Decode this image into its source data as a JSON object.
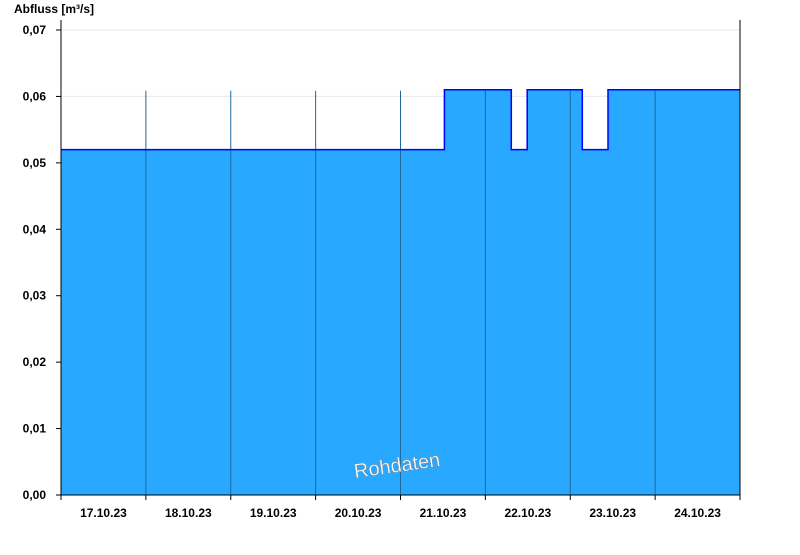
{
  "chart_data": {
    "type": "area",
    "ylabel": "Abfluss [m³/s]",
    "ylim": [
      0,
      0.07
    ],
    "yticks": [
      "0,00",
      "0,01",
      "0,02",
      "0,03",
      "0,04",
      "0,05",
      "0,06",
      "0,07"
    ],
    "xlim": [
      "17.10.23 00:00",
      "25.10.23 00:00"
    ],
    "xticks": [
      "17.10.23",
      "18.10.23",
      "19.10.23",
      "20.10.23",
      "21.10.23",
      "22.10.23",
      "23.10.23",
      "24.10.23"
    ],
    "grid": true,
    "watermark": "Rohdaten",
    "fill_color": "#29a8ff",
    "line_color": "#0000ff",
    "series": [
      {
        "points": [
          [
            "17.10.23 00:00",
            0.052
          ],
          [
            "21.10.23 12:25",
            0.052
          ],
          [
            "21.10.23 12:25",
            0.061
          ],
          [
            "22.10.23 07:20",
            0.061
          ],
          [
            "22.10.23 07:20",
            0.052
          ],
          [
            "22.10.23 11:50",
            0.052
          ],
          [
            "22.10.23 11:50",
            0.061
          ],
          [
            "23.10.23 03:25",
            0.061
          ],
          [
            "23.10.23 03:25",
            0.052
          ],
          [
            "23.10.23 10:40",
            0.052
          ],
          [
            "23.10.23 10:40",
            0.061
          ],
          [
            "25.10.23 00:00",
            0.061
          ]
        ]
      }
    ]
  }
}
